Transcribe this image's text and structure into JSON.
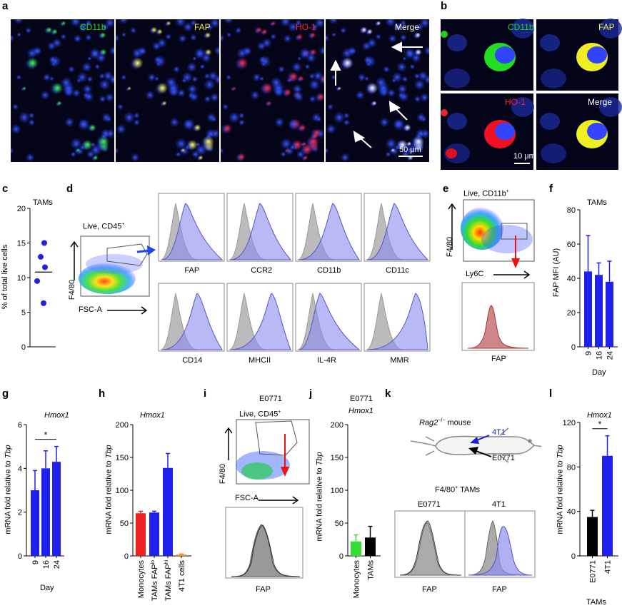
{
  "figure": {
    "panel_letters": [
      "a",
      "b",
      "c",
      "d",
      "e",
      "f",
      "g",
      "h",
      "i",
      "j",
      "k",
      "l"
    ],
    "a": {
      "channels": [
        "CD11b",
        "FAP",
        "HO-1",
        "Merge"
      ],
      "scale_bar": "50 μm",
      "colors": {
        "CD11b": "#22dd22",
        "FAP": "#f2ee33",
        "HO-1": "#ff2233",
        "Merge": "#ffffff"
      }
    },
    "b": {
      "channels": [
        "CD11b",
        "FAP",
        "HO-1",
        "Merge"
      ],
      "scale_bar": "10 μm"
    },
    "c": {
      "title": "TAMs",
      "ylabel": "% of total live cells"
    },
    "d": {
      "gate_label": "Live, CD45",
      "gate_sup": "+",
      "yaxis": "F4/80",
      "xaxis": "FSC-A",
      "markers": [
        "FAP",
        "CCR2",
        "CD11b",
        "CD11c",
        "CD14",
        "MHCII",
        "IL-4R",
        "MMR"
      ]
    },
    "e": {
      "gate_label": "Live, CD11b",
      "gate_sup": "+",
      "yaxis": "F4/80",
      "xaxis": "Ly6C",
      "hist_label": "FAP"
    },
    "f": {
      "title": "TAMs",
      "ylabel": "FAP MFI (AU)",
      "xlabel": "Day"
    },
    "g": {
      "title": "Hmox1",
      "ylabel_pre": "mRNA  fold relative to ",
      "ylabel_it": "Tbp",
      "xlabel": "Day",
      "sig": "*"
    },
    "h": {
      "title": "Hmox1",
      "ylabel_pre": "mRNA  fold relative to ",
      "ylabel_it": "Tbp"
    },
    "i": {
      "title": "E0771",
      "gate_label": "Live, CD45",
      "gate_sup": "+",
      "yaxis": "F4/80",
      "xaxis": "FSC-A",
      "hist_label": "FAP"
    },
    "j": {
      "title": "E0771",
      "subtitle": "Hmox1",
      "ylabel_pre": "mRNA  fold relative to ",
      "ylabel_it": "Tbp"
    },
    "k": {
      "mouse_label_it": "Rag2",
      "mouse_label_sup": "−/−",
      "mouse_label_rest": " mouse",
      "tumor1": "4T1",
      "tumor2": "E0771",
      "hist_title": "F4/80",
      "hist_title_sup": "+",
      "hist_title_rest": " TAMs",
      "hist_labels": [
        "E0771",
        "4T1"
      ],
      "xaxis": "FAP"
    },
    "l": {
      "title": "Hmox1",
      "ylabel_pre": "mRNA  fold relative to ",
      "ylabel_it": "Tbp",
      "xgroup": "TAMs",
      "sig": "*"
    }
  },
  "chart_data": [
    {
      "panel": "c",
      "type": "scatter",
      "title": "TAMs",
      "ylabel": "% of total live cells",
      "ylim": [
        0,
        20
      ],
      "yticks": [
        0,
        5,
        10,
        15,
        20
      ],
      "values": [
        15.0,
        13.0,
        11.5,
        9.5,
        6.3
      ],
      "mean": 10.8,
      "color": "#2222dd"
    },
    {
      "panel": "f",
      "type": "bar",
      "title": "TAMs",
      "ylabel": "FAP MFI (AU)",
      "xlabel": "Day",
      "ylim": [
        0,
        80
      ],
      "yticks": [
        0,
        20,
        40,
        60,
        80
      ],
      "categories": [
        "9",
        "16",
        "24"
      ],
      "values": [
        44,
        42,
        38
      ],
      "errors": [
        21,
        7,
        12
      ],
      "color": "#1f1fee"
    },
    {
      "panel": "g",
      "type": "bar",
      "title": "Hmox1",
      "ylabel": "mRNA fold relative to Tbp",
      "xlabel": "Day",
      "ylim": [
        0,
        6
      ],
      "yticks": [
        0,
        2,
        4,
        6
      ],
      "categories": [
        "9",
        "16",
        "24"
      ],
      "values": [
        3.0,
        4.0,
        4.3
      ],
      "errors": [
        0.9,
        0.8,
        0.7
      ],
      "color": "#1f1fee",
      "sig": "*"
    },
    {
      "panel": "h",
      "type": "bar",
      "title": "Hmox1",
      "ylabel": "mRNA fold relative to Tbp",
      "ylim": [
        0,
        200
      ],
      "yticks": [
        0,
        50,
        100,
        150,
        200
      ],
      "categories": [
        "Monocytes",
        "TAMs FAPlo",
        "TAMs FAPhi",
        "4T1 cells"
      ],
      "values": [
        65,
        66,
        134,
        2
      ],
      "errors": [
        3,
        2,
        22,
        1
      ],
      "colors": [
        "#ee2222",
        "#1f1fee",
        "#1f1fee",
        "#ee8822"
      ]
    },
    {
      "panel": "j",
      "type": "bar",
      "title": "E0771",
      "subtitle": "Hmox1",
      "ylabel": "mRNA fold relative to Tbp",
      "ylim": [
        0,
        200
      ],
      "yticks": [
        0,
        50,
        100,
        150,
        200
      ],
      "categories": [
        "Monocytes",
        "TAMs"
      ],
      "values": [
        22,
        28
      ],
      "errors": [
        10,
        17
      ],
      "colors": [
        "#33dd33",
        "#000000"
      ]
    },
    {
      "panel": "l",
      "type": "bar",
      "title": "Hmox1",
      "ylabel": "mRNA fold relative to Tbp",
      "ylim": [
        0,
        120
      ],
      "yticks": [
        0,
        40,
        80,
        120
      ],
      "categories": [
        "E0771",
        "4T1"
      ],
      "values": [
        35,
        90
      ],
      "errors": [
        6,
        18
      ],
      "colors": [
        "#000000",
        "#1f1fee"
      ],
      "xgroup": "TAMs",
      "sig": "*"
    }
  ]
}
